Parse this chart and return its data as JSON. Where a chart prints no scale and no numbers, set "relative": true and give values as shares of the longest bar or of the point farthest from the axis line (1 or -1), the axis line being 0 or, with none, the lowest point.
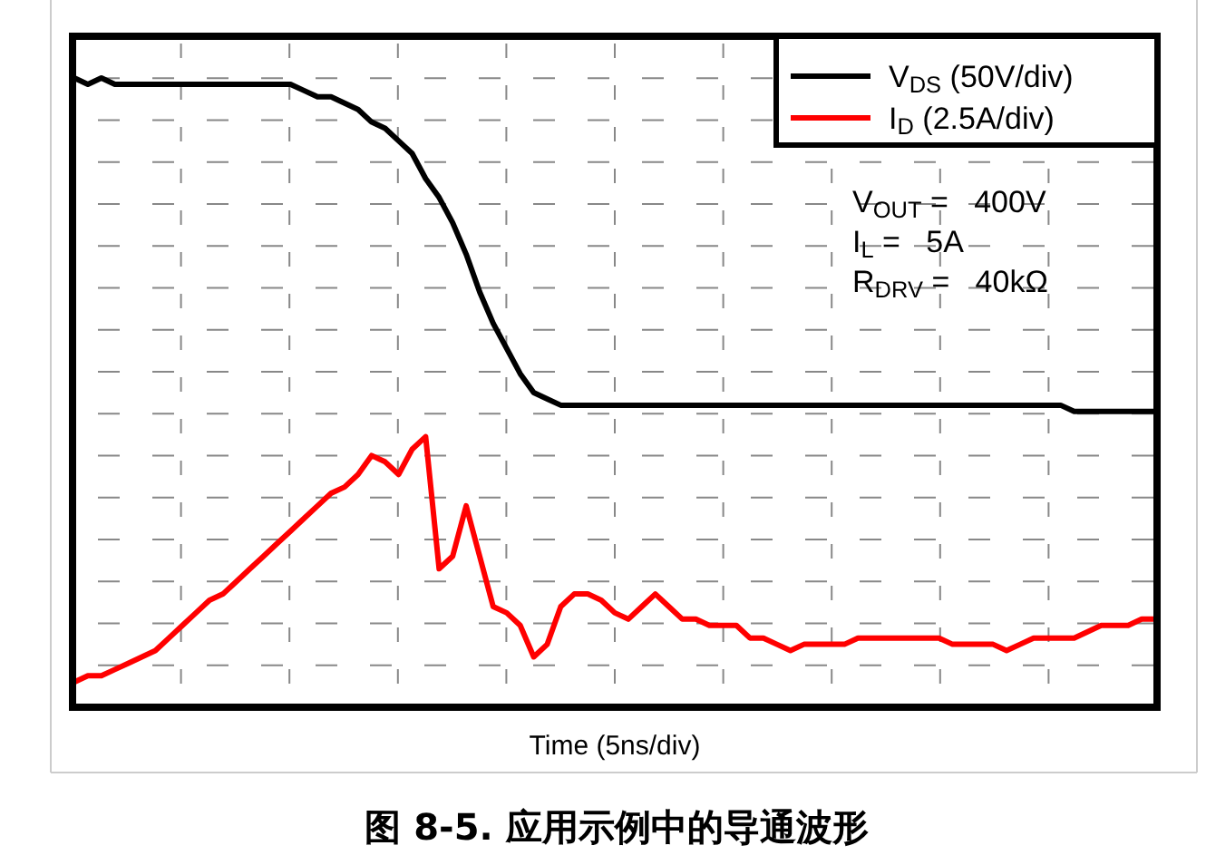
{
  "chart_data": {
    "type": "line",
    "relative": true,
    "title": "图 8-5. 应用示例中的导通波形",
    "xlabel": "Time (5ns/div)",
    "grid": true,
    "legend": "top right",
    "line_style": "solid",
    "categories": [
      null,
      null,
      null,
      null,
      null,
      null,
      null,
      null,
      null,
      null,
      null,
      null,
      null,
      null,
      null,
      null,
      null,
      null,
      null,
      null,
      null,
      null,
      null,
      null,
      null,
      null,
      null,
      null,
      null,
      null,
      null,
      null,
      null,
      null,
      null,
      null,
      null,
      null,
      null,
      null,
      null,
      null,
      null,
      null,
      null,
      null,
      null,
      null,
      null,
      null,
      null,
      null,
      null,
      null,
      null,
      null,
      null,
      null,
      null,
      null,
      null,
      null,
      null,
      null,
      null,
      null,
      null,
      null,
      null,
      null,
      null,
      null,
      null,
      null,
      null,
      null,
      null,
      null,
      null,
      null,
      null
    ],
    "series": [
      {
        "name": "V$_{DS}$ (50V/div)",
        "color": "#000000",
        "values": [
          1.0,
          0.99,
          1.0,
          0.99,
          0.99,
          0.99,
          0.99,
          0.99,
          0.99,
          0.99,
          0.99,
          0.99,
          0.99,
          0.99,
          0.99,
          0.99,
          0.99,
          0.98,
          0.97,
          0.97,
          0.96,
          0.95,
          0.93,
          0.92,
          0.9,
          0.88,
          0.84,
          0.81,
          0.77,
          0.72,
          0.66,
          0.61,
          0.57,
          0.53,
          0.5,
          0.49,
          0.48,
          0.48,
          0.48,
          0.48,
          0.48,
          0.48,
          0.48,
          0.48,
          0.48,
          0.48,
          0.48,
          0.48,
          0.48,
          0.48,
          0.48,
          0.48,
          0.48,
          0.48,
          0.48,
          0.48,
          0.48,
          0.48,
          0.48,
          0.48,
          0.48,
          0.48,
          0.48,
          0.48,
          0.48,
          0.48,
          0.48,
          0.48,
          0.48,
          0.48,
          0.48,
          0.48,
          0.48,
          0.48,
          0.47,
          0.47,
          0.47,
          0.47,
          0.47,
          0.47,
          0.47
        ]
      },
      {
        "name": "I$_{D}$ (2.5A/div)",
        "color": "#ff0000",
        "values": [
          0.04,
          0.05,
          0.05,
          0.06,
          0.07,
          0.08,
          0.09,
          0.11,
          0.13,
          0.15,
          0.17,
          0.18,
          0.2,
          0.22,
          0.24,
          0.26,
          0.28,
          0.3,
          0.32,
          0.34,
          0.35,
          0.37,
          0.4,
          0.39,
          0.37,
          0.41,
          0.43,
          0.22,
          0.24,
          0.32,
          0.24,
          0.16,
          0.15,
          0.13,
          0.08,
          0.1,
          0.16,
          0.18,
          0.18,
          0.17,
          0.15,
          0.14,
          0.16,
          0.18,
          0.16,
          0.14,
          0.14,
          0.13,
          0.13,
          0.13,
          0.11,
          0.11,
          0.1,
          0.09,
          0.1,
          0.1,
          0.1,
          0.1,
          0.11,
          0.11,
          0.11,
          0.11,
          0.11,
          0.11,
          0.11,
          0.1,
          0.1,
          0.1,
          0.1,
          0.09,
          0.1,
          0.11,
          0.11,
          0.11,
          0.11,
          0.12,
          0.13,
          0.13,
          0.13,
          0.14,
          0.14
        ]
      }
    ],
    "annotations": [
      "V$_{OUT}$ =   400V",
      "I$_{L}$ =   5A",
      "R$_{DRV}$ =   40kΩ"
    ]
  }
}
